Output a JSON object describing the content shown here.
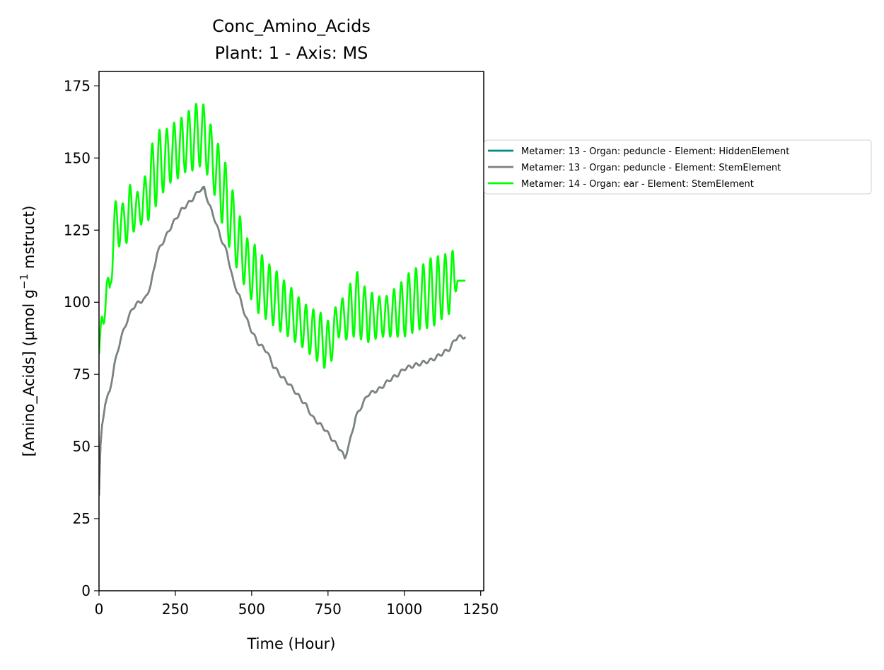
{
  "chart_data": {
    "type": "line",
    "title": "Conc_Amino_Acids",
    "subtitle": "Plant: 1 - Axis: MS",
    "xlabel": "Time (Hour)",
    "ylabel_main": "[Amino_Acids] (µmol g",
    "ylabel_sup": "−1",
    "ylabel_tail": " mstruct)",
    "xlim": [
      0,
      1260
    ],
    "ylim": [
      0,
      180
    ],
    "xticks": [
      0,
      250,
      500,
      750,
      1000,
      1250
    ],
    "yticks": [
      0,
      25,
      50,
      75,
      100,
      125,
      150,
      175
    ],
    "grid": false,
    "legend_position": "right, outside plot",
    "series": [
      {
        "name": "Metamer: 13 - Organ: peduncle - Element: HiddenElement",
        "color": "#008b8b",
        "oscillation": {
          "amplitude": 0.6,
          "period": 24
        },
        "points": [
          [
            0,
            33
          ],
          [
            5,
            50
          ],
          [
            10,
            57
          ],
          [
            20,
            65
          ],
          [
            35,
            69
          ],
          [
            50,
            78
          ],
          [
            70,
            87
          ],
          [
            90,
            93
          ],
          [
            110,
            98
          ],
          [
            130,
            100
          ],
          [
            150,
            101
          ],
          [
            170,
            106
          ],
          [
            190,
            117
          ],
          [
            210,
            121
          ],
          [
            240,
            127
          ],
          [
            270,
            132
          ],
          [
            300,
            135
          ],
          [
            330,
            139
          ],
          [
            345,
            139
          ],
          [
            360,
            134
          ],
          [
            375,
            130
          ],
          [
            400,
            122
          ],
          [
            420,
            117
          ],
          [
            440,
            107
          ],
          [
            460,
            102
          ],
          [
            480,
            95
          ],
          [
            500,
            90
          ],
          [
            520,
            86
          ],
          [
            550,
            83
          ],
          [
            570,
            78
          ],
          [
            600,
            74
          ],
          [
            620,
            72
          ],
          [
            650,
            68
          ],
          [
            680,
            64
          ],
          [
            700,
            60
          ],
          [
            720,
            58
          ],
          [
            740,
            56
          ],
          [
            760,
            53
          ],
          [
            790,
            49
          ],
          [
            805,
            46
          ],
          [
            820,
            51
          ],
          [
            840,
            60
          ],
          [
            860,
            64
          ],
          [
            880,
            68
          ],
          [
            900,
            69
          ],
          [
            920,
            70
          ],
          [
            950,
            73
          ],
          [
            980,
            75
          ],
          [
            1000,
            77
          ],
          [
            1030,
            78
          ],
          [
            1060,
            79
          ],
          [
            1090,
            80
          ],
          [
            1120,
            82
          ],
          [
            1150,
            84
          ],
          [
            1165,
            87
          ],
          [
            1175,
            88
          ],
          [
            1200,
            88
          ]
        ]
      },
      {
        "name": "Metamer: 13 - Organ: peduncle - Element: StemElement",
        "color": "#808080",
        "oscillation": {
          "amplitude": 0.6,
          "period": 24
        },
        "points": [
          [
            0,
            33
          ],
          [
            5,
            50
          ],
          [
            10,
            57
          ],
          [
            20,
            65
          ],
          [
            35,
            69
          ],
          [
            50,
            78
          ],
          [
            70,
            87
          ],
          [
            90,
            93
          ],
          [
            110,
            98
          ],
          [
            130,
            100
          ],
          [
            150,
            101
          ],
          [
            170,
            106
          ],
          [
            190,
            117
          ],
          [
            210,
            121
          ],
          [
            240,
            127
          ],
          [
            270,
            132
          ],
          [
            300,
            135
          ],
          [
            330,
            139
          ],
          [
            345,
            139.5
          ],
          [
            360,
            134
          ],
          [
            375,
            130
          ],
          [
            400,
            122
          ],
          [
            420,
            117
          ],
          [
            440,
            107
          ],
          [
            460,
            102
          ],
          [
            480,
            95
          ],
          [
            500,
            90
          ],
          [
            520,
            86
          ],
          [
            550,
            83
          ],
          [
            570,
            78
          ],
          [
            600,
            74
          ],
          [
            620,
            72
          ],
          [
            650,
            68
          ],
          [
            680,
            64
          ],
          [
            700,
            60
          ],
          [
            720,
            58
          ],
          [
            740,
            56
          ],
          [
            760,
            53
          ],
          [
            790,
            49
          ],
          [
            805,
            46
          ],
          [
            820,
            51
          ],
          [
            840,
            60
          ],
          [
            860,
            64
          ],
          [
            880,
            68
          ],
          [
            900,
            69
          ],
          [
            920,
            70
          ],
          [
            950,
            73
          ],
          [
            980,
            75
          ],
          [
            1000,
            77
          ],
          [
            1030,
            78
          ],
          [
            1060,
            79
          ],
          [
            1090,
            80
          ],
          [
            1120,
            82
          ],
          [
            1150,
            84
          ],
          [
            1165,
            87
          ],
          [
            1175,
            88
          ],
          [
            1200,
            88
          ]
        ]
      },
      {
        "name": "Metamer: 14 - Organ: ear - Element: StemElement",
        "color": "#00ff00",
        "oscillation": {
          "period": 24
        },
        "points": [
          [
            0,
            82,
            2
          ],
          [
            10,
            92,
            6
          ],
          [
            25,
            105,
            4
          ],
          [
            35,
            104,
            4
          ],
          [
            45,
            122,
            10
          ],
          [
            60,
            128,
            9
          ],
          [
            80,
            127,
            7
          ],
          [
            100,
            131,
            10
          ],
          [
            120,
            132,
            6
          ],
          [
            140,
            133,
            6
          ],
          [
            160,
            138,
            10
          ],
          [
            180,
            145,
            13
          ],
          [
            200,
            148,
            12
          ],
          [
            220,
            150,
            10
          ],
          [
            240,
            152,
            10
          ],
          [
            260,
            153,
            10
          ],
          [
            280,
            155,
            10
          ],
          [
            300,
            156,
            11
          ],
          [
            320,
            158,
            11
          ],
          [
            340,
            158,
            11
          ],
          [
            355,
            155,
            11
          ],
          [
            370,
            150,
            10
          ],
          [
            390,
            144,
            11
          ],
          [
            410,
            137,
            13
          ],
          [
            430,
            130,
            12
          ],
          [
            450,
            123,
            11
          ],
          [
            470,
            117,
            10
          ],
          [
            490,
            112,
            9
          ],
          [
            510,
            109,
            11
          ],
          [
            530,
            106,
            11
          ],
          [
            550,
            104,
            10
          ],
          [
            570,
            102,
            10
          ],
          [
            590,
            100,
            10
          ],
          [
            610,
            98,
            9
          ],
          [
            630,
            96,
            9
          ],
          [
            660,
            93,
            8
          ],
          [
            690,
            90,
            8
          ],
          [
            720,
            88,
            9
          ],
          [
            740,
            86,
            9
          ],
          [
            755,
            85,
            8
          ],
          [
            770,
            90,
            7
          ],
          [
            790,
            96,
            7
          ],
          [
            810,
            93,
            6
          ],
          [
            825,
            98,
            10
          ],
          [
            840,
            100,
            12
          ],
          [
            860,
            97,
            10
          ],
          [
            880,
            95,
            9
          ],
          [
            900,
            95,
            8
          ],
          [
            920,
            95,
            7
          ],
          [
            940,
            95,
            7
          ],
          [
            960,
            96,
            8
          ],
          [
            980,
            97,
            9
          ],
          [
            1000,
            98,
            10
          ],
          [
            1020,
            100,
            11
          ],
          [
            1040,
            101,
            11
          ],
          [
            1060,
            102,
            11
          ],
          [
            1080,
            103,
            12
          ],
          [
            1100,
            104,
            12
          ],
          [
            1120,
            105,
            11
          ],
          [
            1140,
            106,
            11
          ],
          [
            1160,
            108,
            10
          ],
          [
            1175,
            107.5,
            0
          ],
          [
            1200,
            107.5,
            0
          ]
        ]
      }
    ]
  }
}
